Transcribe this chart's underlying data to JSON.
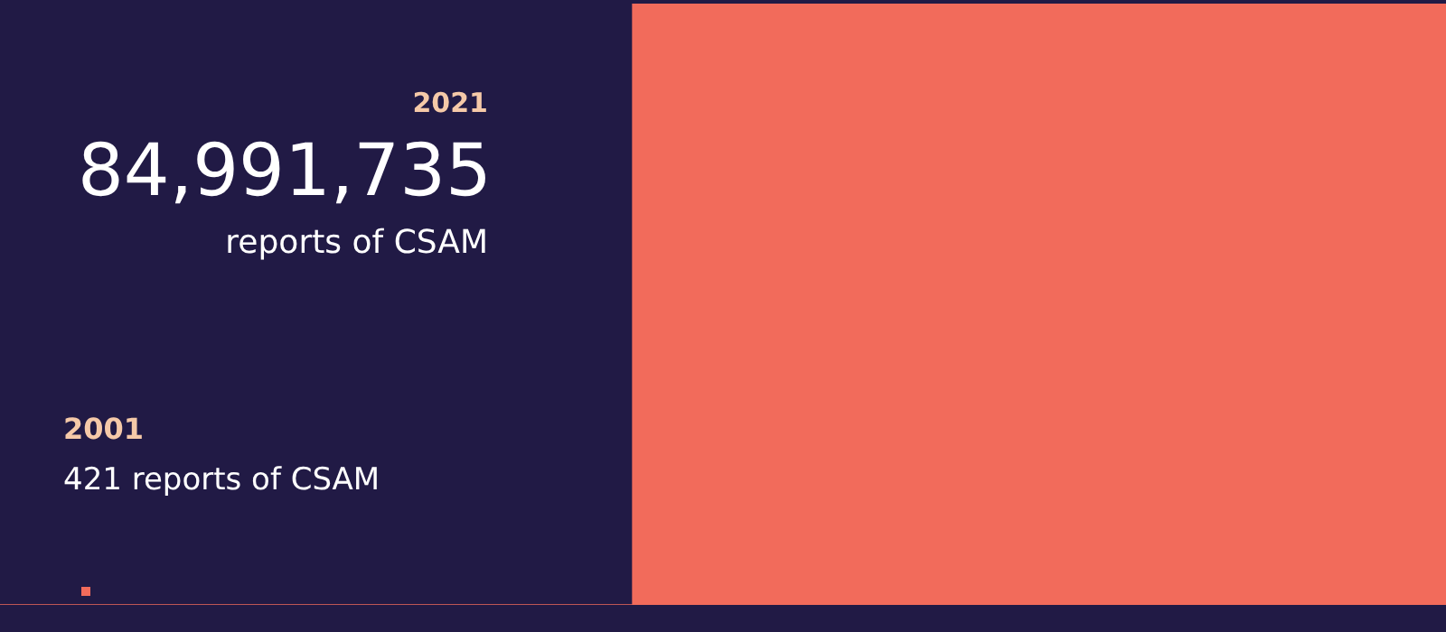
{
  "chart_data": {
    "type": "other",
    "categories": [
      "2001",
      "2021"
    ],
    "values": [
      421,
      84991735
    ],
    "value_labels": [
      "421",
      "84,991,735"
    ],
    "annotations": [
      "reports of CSAM",
      "reports of CSAM"
    ],
    "colors": [
      "#f26b5b",
      "#f26b5b"
    ]
  }
}
